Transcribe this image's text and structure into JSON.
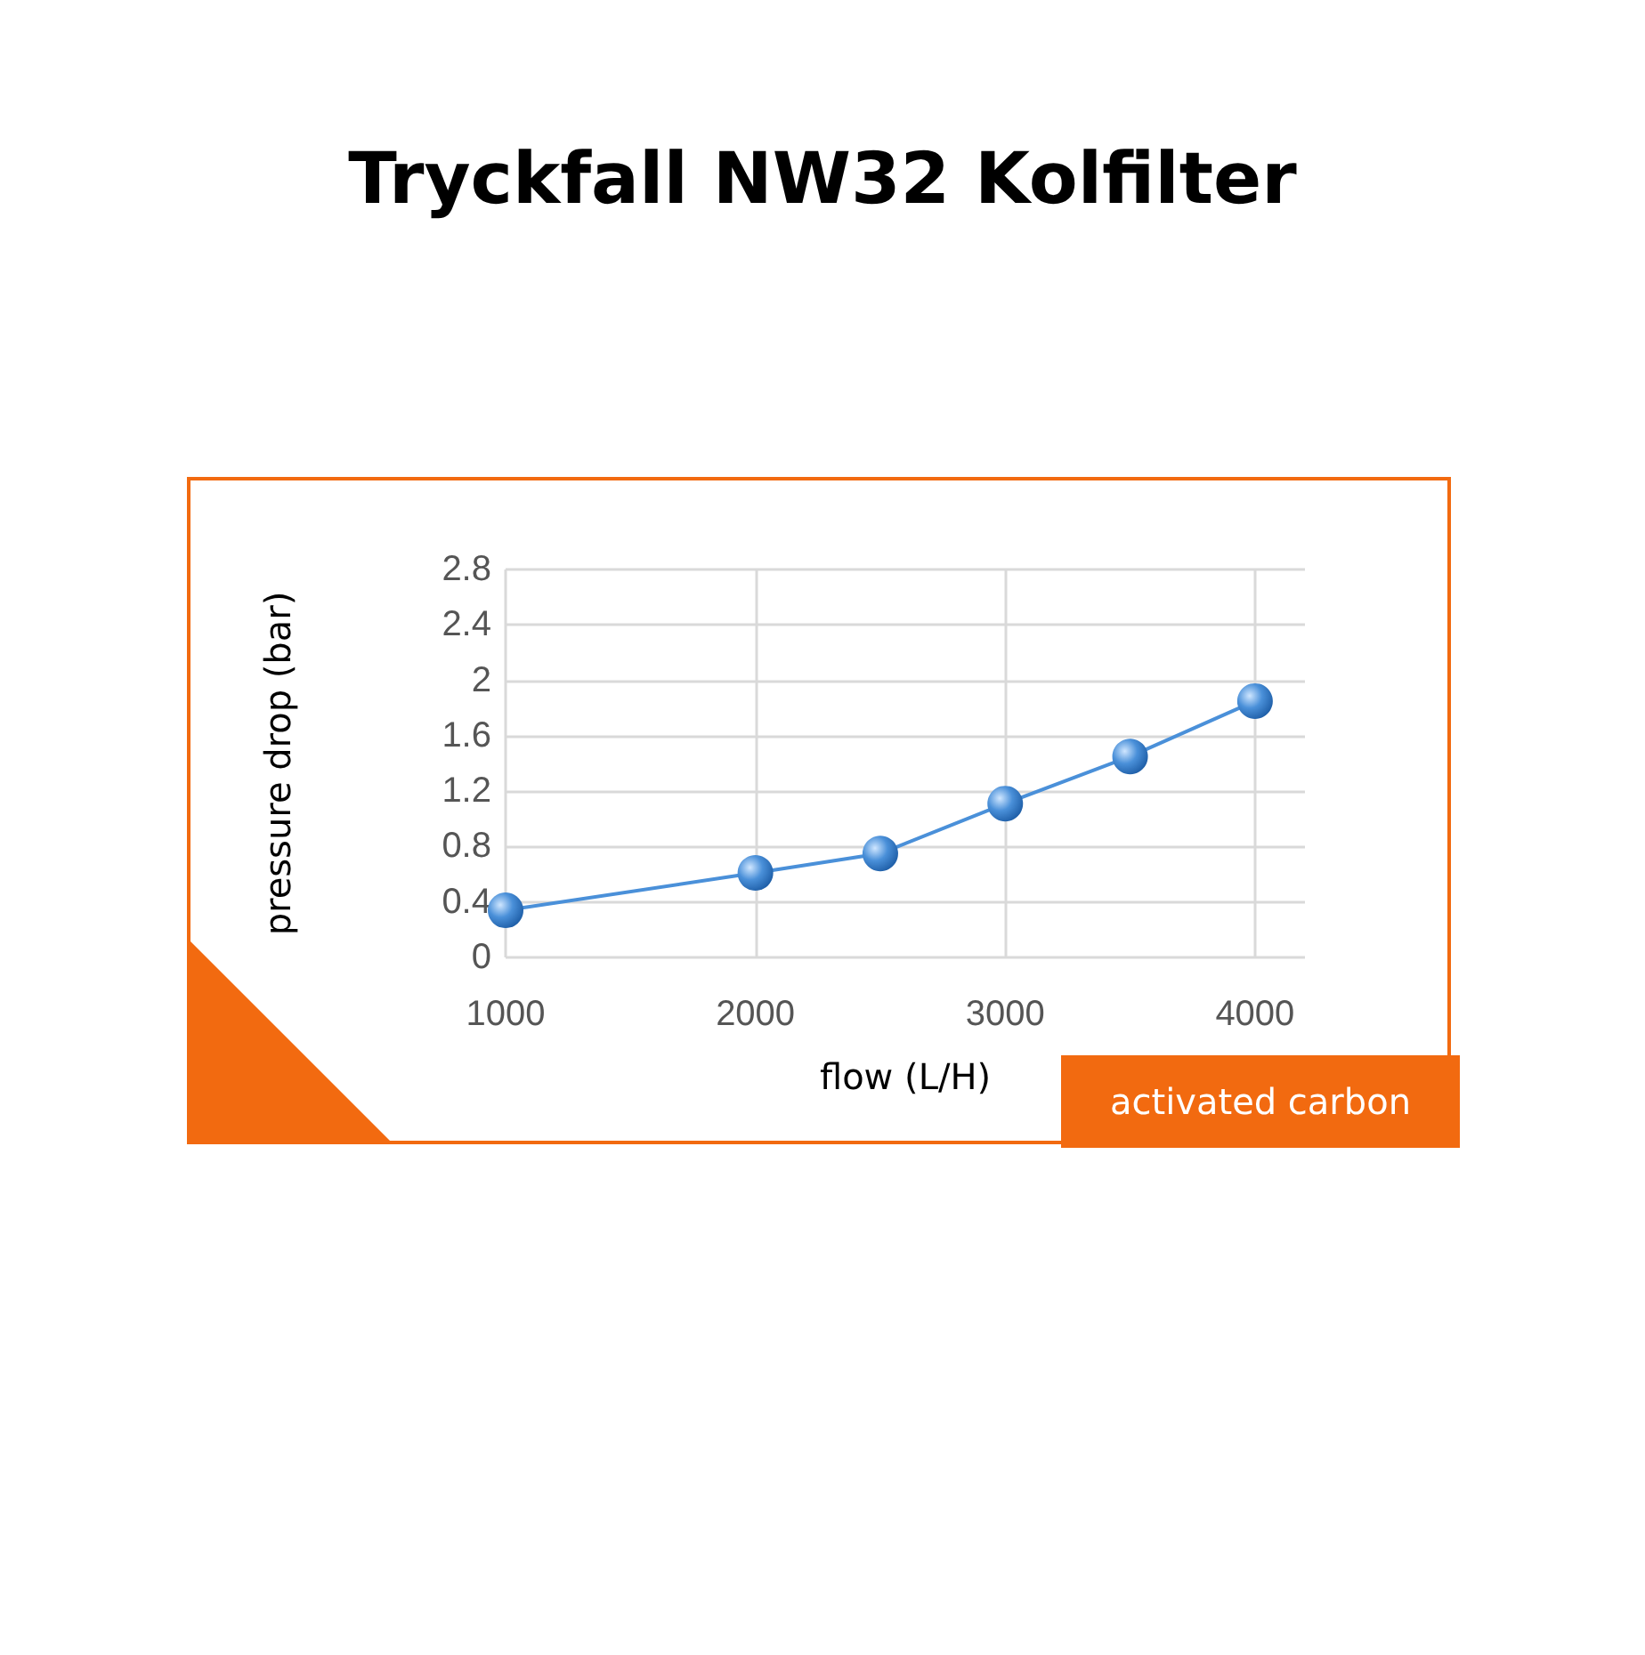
{
  "chart_data": {
    "type": "line",
    "title": "Tryckfall NW32 Kolfilter",
    "xlabel": "flow (L/H)",
    "ylabel": "pressure drop (bar)",
    "annotations": [
      "activated carbon"
    ],
    "x": [
      1000,
      2000,
      2500,
      3000,
      3500,
      4000
    ],
    "series": [
      {
        "color": "#4a90d9",
        "values": [
          0.34,
          0.61,
          0.75,
          1.11,
          1.45,
          1.85
        ]
      }
    ],
    "xlim": [
      1000,
      4200
    ],
    "xticks": [
      1000,
      2000,
      3000,
      4000
    ],
    "ylim": [
      0,
      2.8
    ],
    "yticks": [
      0,
      0.4,
      0.8,
      1.2,
      1.6,
      2,
      2.4,
      2.8
    ],
    "grid": true,
    "marker": "circle",
    "line_style": "solid"
  }
}
